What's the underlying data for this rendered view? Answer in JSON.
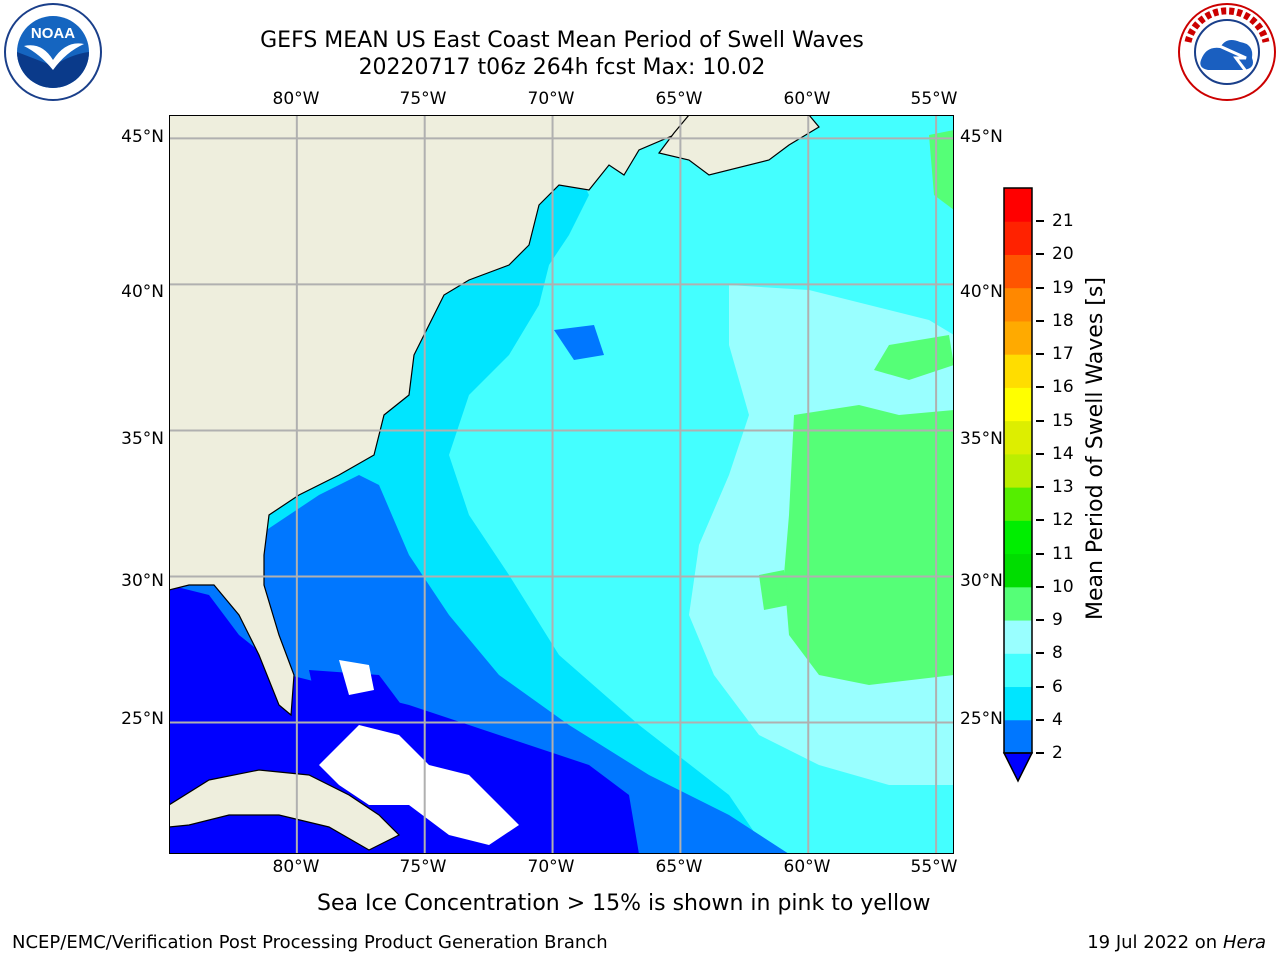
{
  "title": {
    "line1": "GEFS MEAN US East Coast Mean Period of Swell Waves",
    "line2": "20220717 t06z 264h fcst   Max: 10.02"
  },
  "map": {
    "lon_labels": [
      "80°W",
      "75°W",
      "70°W",
      "65°W",
      "60°W",
      "55°W"
    ],
    "lat_labels": [
      "45°N",
      "40°N",
      "35°N",
      "30°N",
      "25°N"
    ],
    "extent": {
      "lon_min": -85,
      "lon_max": -54.3,
      "lat_min": 20.5,
      "lat_max": 45.8
    },
    "colors": {
      "land": "#eeeedd",
      "sea_ice_or_missing": "#ffffff",
      "grid": "#b0b0b0",
      "coast": "#000000"
    }
  },
  "colorbar": {
    "label": "Mean Period of Swell Waves [s]",
    "ticks": [
      "2",
      "4",
      "6",
      "8",
      "9",
      "10",
      "11",
      "12",
      "13",
      "14",
      "15",
      "16",
      "17",
      "18",
      "19",
      "20",
      "21"
    ],
    "under_color": "#0000ff",
    "bins": [
      {
        "from": 2,
        "to": 4,
        "color": "#0077ff"
      },
      {
        "from": 4,
        "to": 6,
        "color": "#00e5ff"
      },
      {
        "from": 6,
        "to": 8,
        "color": "#44ffff"
      },
      {
        "from": 8,
        "to": 9,
        "color": "#99ffff"
      },
      {
        "from": 9,
        "to": 10,
        "color": "#55ff77"
      },
      {
        "from": 10,
        "to": 11,
        "color": "#00dd00"
      },
      {
        "from": 11,
        "to": 12,
        "color": "#00ee00"
      },
      {
        "from": 12,
        "to": 13,
        "color": "#55ee00"
      },
      {
        "from": 13,
        "to": 14,
        "color": "#bbee00"
      },
      {
        "from": 14,
        "to": 15,
        "color": "#ddee00"
      },
      {
        "from": 15,
        "to": 16,
        "color": "#ffff00"
      },
      {
        "from": 16,
        "to": 17,
        "color": "#ffdd00"
      },
      {
        "from": 17,
        "to": 18,
        "color": "#ffaa00"
      },
      {
        "from": 18,
        "to": 19,
        "color": "#ff8800"
      },
      {
        "from": 19,
        "to": 20,
        "color": "#ff5500"
      },
      {
        "from": 20,
        "to": 21,
        "color": "#ff2200"
      },
      {
        "from": 21,
        "to": 22,
        "color": "#ff0000"
      }
    ]
  },
  "note": "Sea Ice Concentration > 15% is shown in pink to yellow",
  "footer": {
    "left": "NCEP/EMC/Verification Post Processing Product Generation Branch",
    "right_date": "19 Jul 2022 on ",
    "right_host": "Hera"
  },
  "logos": {
    "noaa": {
      "text": "NOAA",
      "icon": "noaa-logo"
    },
    "nws": {
      "text": "NATIONAL WEATHER SERVICE",
      "icon": "nws-logo"
    }
  }
}
